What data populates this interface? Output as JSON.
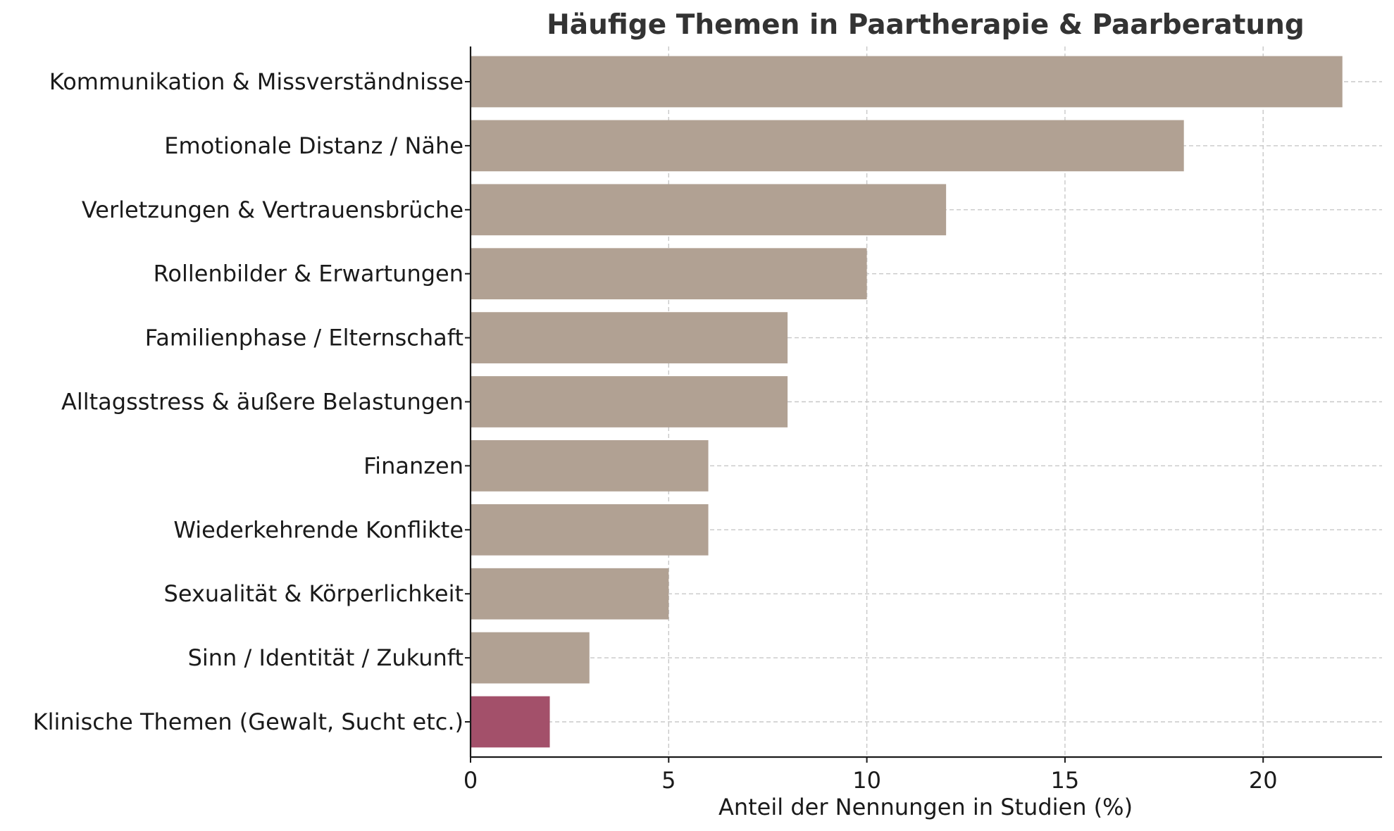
{
  "chart_data": {
    "type": "bar",
    "orientation": "horizontal",
    "title": "Häufige Themen in Paartherapie & Paarberatung",
    "xlabel": "Anteil der Nennungen in Studien (%)",
    "ylabel": "",
    "xlim": [
      0,
      23
    ],
    "xticks": [
      0,
      5,
      10,
      15,
      20
    ],
    "grid": true,
    "categories": [
      "Kommunikation & Missverständnisse",
      "Emotionale Distanz / Nähe",
      "Verletzungen & Vertrauensbrüche",
      "Rollenbilder & Erwartungen",
      "Familienphase / Elternschaft",
      "Alltagsstress & äußere Belastungen",
      "Finanzen",
      "Wiederkehrende Konflikte",
      "Sexualität & Körperlichkeit",
      "Sinn / Identität / Zukunft",
      "Klinische Themen (Gewalt, Sucht etc.)"
    ],
    "values": [
      22,
      18,
      12,
      10,
      8,
      8,
      6,
      6,
      5,
      3,
      2
    ],
    "colors": {
      "default": "#b1a193",
      "highlight": "#a3506a"
    },
    "highlighted_category": "Klinische Themen (Gewalt, Sucht etc.)"
  }
}
